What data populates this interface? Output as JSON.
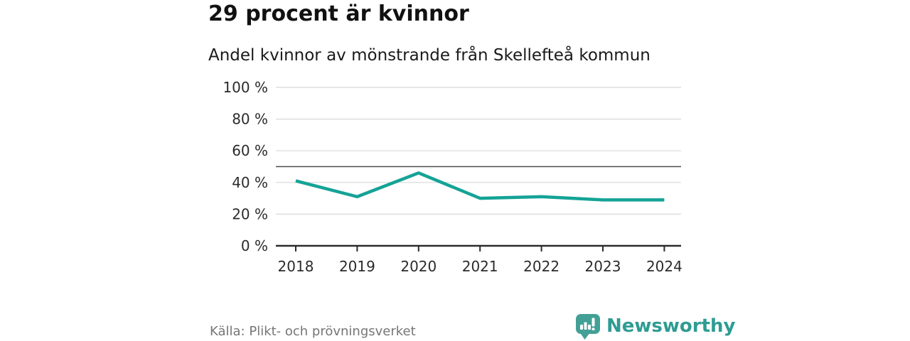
{
  "header": {
    "title": "29 procent är kvinnor",
    "subtitle": "Andel kvinnor av mönstrande från Skellefteå kommun"
  },
  "footer": {
    "source": "Källa: Plikt- och prövningsverket",
    "brand_name": "Newsworthy",
    "brand_icon": "newsworthy-speech-bubble-bar-chart-icon"
  },
  "colors": {
    "background": "#FFFFFF",
    "line": "#14A396",
    "grid": "#D8D8D8",
    "reference_line": "#4D4D4D",
    "axis": "#2B2B2B",
    "tick_label": "#2B2B2B",
    "title": "#111111",
    "subtitle": "#1A1A1A",
    "source_text": "#767676",
    "brand_teal": "#2E9C92",
    "brand_icon_fill": "#43A096"
  },
  "chart_data": {
    "type": "line",
    "title": "29 procent är kvinnor",
    "subtitle": "Andel kvinnor av mönstrande från Skellefteå kommun",
    "x": [
      "2018",
      "2019",
      "2020",
      "2021",
      "2022",
      "2023",
      "2024"
    ],
    "series": [
      {
        "name": "Andel kvinnor av mönstrande",
        "values": [
          41,
          31,
          46,
          30,
          31,
          29,
          29
        ]
      }
    ],
    "unit": "%",
    "ylim": [
      0,
      100
    ],
    "y_ticks": [
      0,
      20,
      40,
      60,
      80,
      100
    ],
    "y_tick_format": "{v} %",
    "reference_line": 50,
    "grid": true,
    "legend_position": "none"
  }
}
